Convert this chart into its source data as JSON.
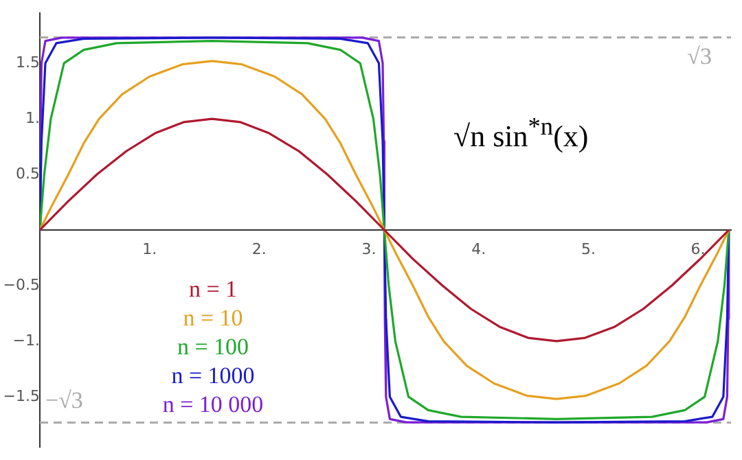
{
  "chart_data": {
    "type": "line",
    "title": "√n sin$^{*n}$(x)",
    "xlim": [
      0,
      6.3
    ],
    "ylim": [
      -1.95,
      1.95
    ],
    "xticks": [
      {
        "value": 1,
        "label": "1."
      },
      {
        "value": 2,
        "label": "2."
      },
      {
        "value": 3,
        "label": "3."
      },
      {
        "value": 4,
        "label": "4."
      },
      {
        "value": 5,
        "label": "5."
      },
      {
        "value": 6,
        "label": "6."
      }
    ],
    "yticks": [
      {
        "value": -1.5,
        "label": "−1.5"
      },
      {
        "value": -1,
        "label": "−1."
      },
      {
        "value": -0.5,
        "label": "−0.5"
      },
      {
        "value": 0.5,
        "label": "0.5"
      },
      {
        "value": 1,
        "label": "1."
      },
      {
        "value": 1.5,
        "label": "1.5"
      }
    ],
    "grid": false,
    "legend": "left",
    "marker": "none",
    "line_style": "solid",
    "ref_lines": [
      {
        "axis": "y",
        "value": 1.732,
        "label": "√3",
        "color": "#aaaaaa",
        "line_style": "dashed"
      },
      {
        "axis": "y",
        "value": -1.732,
        "label": "−√3",
        "color": "#aaaaaa",
        "line_style": "dashed"
      }
    ],
    "series": [
      {
        "name": "n = 1",
        "color": "#b0182f",
        "x": [
          0,
          0.26,
          0.52,
          0.79,
          1.05,
          1.31,
          1.57,
          1.83,
          2.09,
          2.36,
          2.62,
          2.88,
          3.14,
          3.4,
          3.67,
          3.93,
          4.19,
          4.45,
          4.71,
          4.97,
          5.24,
          5.5,
          5.76,
          6.02,
          6.28
        ],
        "values": [
          0,
          0.26,
          0.5,
          0.71,
          0.87,
          0.97,
          1,
          0.97,
          0.87,
          0.71,
          0.5,
          0.26,
          0,
          -0.26,
          -0.5,
          -0.71,
          -0.87,
          -0.97,
          -1,
          -0.97,
          -0.87,
          -0.71,
          -0.5,
          -0.26,
          0
        ]
      },
      {
        "name": "n = 10",
        "color": "#e6a020",
        "x": [
          0,
          0.1,
          0.26,
          0.4,
          0.54,
          0.75,
          1.0,
          1.3,
          1.57,
          1.84,
          2.14,
          2.39,
          2.6,
          2.74,
          2.88,
          3.04,
          3.14,
          3.24,
          3.4,
          3.54,
          3.68,
          3.89,
          4.14,
          4.44,
          4.71,
          4.98,
          5.28,
          5.53,
          5.74,
          5.88,
          6.02,
          6.18,
          6.28
        ],
        "values": [
          0,
          0.2,
          0.5,
          0.78,
          1.0,
          1.22,
          1.38,
          1.49,
          1.52,
          1.49,
          1.38,
          1.22,
          1.0,
          0.78,
          0.5,
          0.2,
          0,
          -0.2,
          -0.5,
          -0.78,
          -1.0,
          -1.22,
          -1.38,
          -1.49,
          -1.52,
          -1.49,
          -1.38,
          -1.22,
          -1.0,
          -0.78,
          -0.5,
          -0.2,
          0
        ]
      },
      {
        "name": "n = 100",
        "color": "#1fa82a",
        "x": [
          0,
          0.04,
          0.1,
          0.22,
          0.4,
          0.7,
          1.57,
          2.44,
          2.74,
          2.92,
          3.04,
          3.1,
          3.14,
          3.18,
          3.24,
          3.36,
          3.54,
          3.84,
          4.71,
          5.58,
          5.88,
          6.06,
          6.18,
          6.24,
          6.28
        ],
        "values": [
          0,
          0.5,
          1.0,
          1.5,
          1.62,
          1.68,
          1.7,
          1.68,
          1.62,
          1.5,
          1.0,
          0.5,
          0,
          -0.5,
          -1.0,
          -1.5,
          -1.62,
          -1.68,
          -1.7,
          -1.68,
          -1.62,
          -1.5,
          -1.0,
          -0.5,
          0
        ]
      },
      {
        "name": "n = 1000",
        "color": "#1a1acb",
        "x": [
          0,
          0.015,
          0.05,
          0.15,
          0.4,
          1.57,
          2.74,
          2.99,
          3.09,
          3.125,
          3.14,
          3.155,
          3.19,
          3.29,
          3.54,
          4.71,
          5.88,
          6.13,
          6.23,
          6.265,
          6.28
        ],
        "values": [
          0,
          0.8,
          1.5,
          1.68,
          1.72,
          1.73,
          1.72,
          1.68,
          1.5,
          0.8,
          0,
          -0.8,
          -1.5,
          -1.68,
          -1.72,
          -1.73,
          -1.72,
          -1.68,
          -1.5,
          -0.8,
          0
        ]
      },
      {
        "name": "n = 10 000",
        "color": "#7b1fd6",
        "x": [
          0,
          0.005,
          0.015,
          0.05,
          0.2,
          1.57,
          2.94,
          3.09,
          3.125,
          3.135,
          3.14,
          3.145,
          3.155,
          3.19,
          3.34,
          4.71,
          6.08,
          6.23,
          6.265,
          6.275,
          6.28
        ],
        "values": [
          0,
          0.8,
          1.5,
          1.7,
          1.73,
          1.73,
          1.73,
          1.7,
          1.5,
          0.8,
          0,
          -0.8,
          -1.5,
          -1.7,
          -1.73,
          -1.73,
          -1.73,
          -1.7,
          -1.5,
          -0.8,
          0
        ]
      }
    ]
  }
}
